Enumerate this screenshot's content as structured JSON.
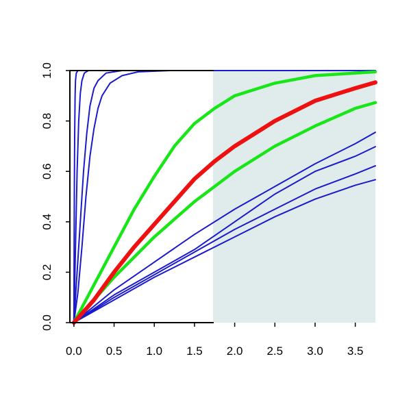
{
  "chart_data": {
    "type": "line",
    "title": "",
    "xlabel": "",
    "ylabel": "",
    "xlim": [
      -0.05,
      3.75
    ],
    "ylim": [
      0,
      1
    ],
    "grid": false,
    "shaded_region": {
      "x_from": 1.73,
      "x_to": 3.75,
      "color": "#e0ecec"
    },
    "x_ticks": [
      {
        "value": 0.0,
        "label": "0.0"
      },
      {
        "value": 0.5,
        "label": "0.5"
      },
      {
        "value": 1.0,
        "label": "1.0"
      },
      {
        "value": 1.5,
        "label": "1.5"
      },
      {
        "value": 2.0,
        "label": "2.0"
      },
      {
        "value": 2.5,
        "label": "2.5"
      },
      {
        "value": 3.0,
        "label": "3.0"
      },
      {
        "value": 3.5,
        "label": "3.5"
      }
    ],
    "y_ticks": [
      {
        "value": 0.0,
        "label": "0.0"
      },
      {
        "value": 0.2,
        "label": "0.2"
      },
      {
        "value": 0.4,
        "label": "0.4"
      },
      {
        "value": 0.6,
        "label": "0.6"
      },
      {
        "value": 0.8,
        "label": "0.8"
      },
      {
        "value": 1.0,
        "label": "1.0"
      }
    ],
    "series": [
      {
        "color": "#1a1acc",
        "width": 2,
        "points": [
          [
            0,
            0
          ],
          [
            0.003,
            0.3
          ],
          [
            0.006,
            0.55
          ],
          [
            0.01,
            0.75
          ],
          [
            0.015,
            0.9
          ],
          [
            0.02,
            0.96
          ],
          [
            0.03,
            0.99
          ],
          [
            0.05,
            1.0
          ],
          [
            3.75,
            1.0
          ]
        ]
      },
      {
        "color": "#1a1acc",
        "width": 2,
        "points": [
          [
            0,
            0
          ],
          [
            0.02,
            0.3
          ],
          [
            0.04,
            0.6
          ],
          [
            0.06,
            0.8
          ],
          [
            0.08,
            0.91
          ],
          [
            0.1,
            0.96
          ],
          [
            0.13,
            0.99
          ],
          [
            0.18,
            1.0
          ],
          [
            3.75,
            1.0
          ]
        ]
      },
      {
        "color": "#1a1acc",
        "width": 2,
        "points": [
          [
            0,
            0
          ],
          [
            0.04,
            0.2
          ],
          [
            0.08,
            0.4
          ],
          [
            0.12,
            0.6
          ],
          [
            0.16,
            0.75
          ],
          [
            0.2,
            0.86
          ],
          [
            0.25,
            0.93
          ],
          [
            0.3,
            0.96
          ],
          [
            0.4,
            0.99
          ],
          [
            0.6,
            1.0
          ],
          [
            3.75,
            1.0
          ]
        ]
      },
      {
        "color": "#1a1acc",
        "width": 2,
        "points": [
          [
            0,
            0
          ],
          [
            0.05,
            0.12
          ],
          [
            0.1,
            0.3
          ],
          [
            0.15,
            0.5
          ],
          [
            0.2,
            0.66
          ],
          [
            0.25,
            0.77
          ],
          [
            0.3,
            0.85
          ],
          [
            0.35,
            0.9
          ],
          [
            0.45,
            0.95
          ],
          [
            0.6,
            0.98
          ],
          [
            0.8,
            0.995
          ],
          [
            1.2,
            1.0
          ],
          [
            3.75,
            1.0
          ]
        ]
      },
      {
        "color": "#1a1acc",
        "width": 2,
        "points": [
          [
            0,
            0
          ],
          [
            0.5,
            0.09
          ],
          [
            1.0,
            0.18
          ],
          [
            1.5,
            0.26
          ],
          [
            2.0,
            0.34
          ],
          [
            2.5,
            0.42
          ],
          [
            3.0,
            0.49
          ],
          [
            3.5,
            0.545
          ],
          [
            3.75,
            0.567
          ]
        ]
      },
      {
        "color": "#1a1acc",
        "width": 2,
        "points": [
          [
            0,
            0
          ],
          [
            0.5,
            0.1
          ],
          [
            1.0,
            0.19
          ],
          [
            1.5,
            0.28
          ],
          [
            2.0,
            0.37
          ],
          [
            2.5,
            0.45
          ],
          [
            3.0,
            0.53
          ],
          [
            3.5,
            0.59
          ],
          [
            3.75,
            0.622
          ]
        ]
      },
      {
        "color": "#1a1acc",
        "width": 2,
        "points": [
          [
            0,
            0
          ],
          [
            0.5,
            0.11
          ],
          [
            1.0,
            0.2
          ],
          [
            1.5,
            0.29
          ],
          [
            2.0,
            0.4
          ],
          [
            2.5,
            0.51
          ],
          [
            3.0,
            0.6
          ],
          [
            3.5,
            0.66
          ],
          [
            3.75,
            0.698
          ]
        ]
      },
      {
        "color": "#1a1acc",
        "width": 2,
        "points": [
          [
            0,
            0
          ],
          [
            0.5,
            0.13
          ],
          [
            1.0,
            0.24
          ],
          [
            1.5,
            0.35
          ],
          [
            2.0,
            0.45
          ],
          [
            2.5,
            0.54
          ],
          [
            3.0,
            0.63
          ],
          [
            3.5,
            0.71
          ],
          [
            3.75,
            0.755
          ]
        ]
      },
      {
        "color": "#19e619",
        "width": 4.5,
        "points": [
          [
            0,
            0
          ],
          [
            0.25,
            0.09
          ],
          [
            0.5,
            0.18
          ],
          [
            0.75,
            0.26
          ],
          [
            1.0,
            0.34
          ],
          [
            1.25,
            0.41
          ],
          [
            1.5,
            0.48
          ],
          [
            2.0,
            0.6
          ],
          [
            2.5,
            0.7
          ],
          [
            3.0,
            0.78
          ],
          [
            3.5,
            0.85
          ],
          [
            3.75,
            0.873
          ]
        ]
      },
      {
        "color": "#19e619",
        "width": 4.5,
        "points": [
          [
            0,
            0
          ],
          [
            0.25,
            0.15
          ],
          [
            0.5,
            0.3
          ],
          [
            0.75,
            0.45
          ],
          [
            1.0,
            0.58
          ],
          [
            1.25,
            0.7
          ],
          [
            1.5,
            0.79
          ],
          [
            1.75,
            0.85
          ],
          [
            2.0,
            0.9
          ],
          [
            2.5,
            0.95
          ],
          [
            3.0,
            0.98
          ],
          [
            3.5,
            0.99
          ],
          [
            3.75,
            0.995
          ]
        ]
      },
      {
        "color": "#ee1111",
        "width": 6,
        "points": [
          [
            0,
            0
          ],
          [
            0.25,
            0.09
          ],
          [
            0.5,
            0.2
          ],
          [
            0.75,
            0.3
          ],
          [
            1.0,
            0.39
          ],
          [
            1.25,
            0.48
          ],
          [
            1.5,
            0.57
          ],
          [
            1.75,
            0.64
          ],
          [
            2.0,
            0.7
          ],
          [
            2.5,
            0.8
          ],
          [
            3.0,
            0.88
          ],
          [
            3.5,
            0.93
          ],
          [
            3.75,
            0.953
          ]
        ]
      }
    ]
  }
}
